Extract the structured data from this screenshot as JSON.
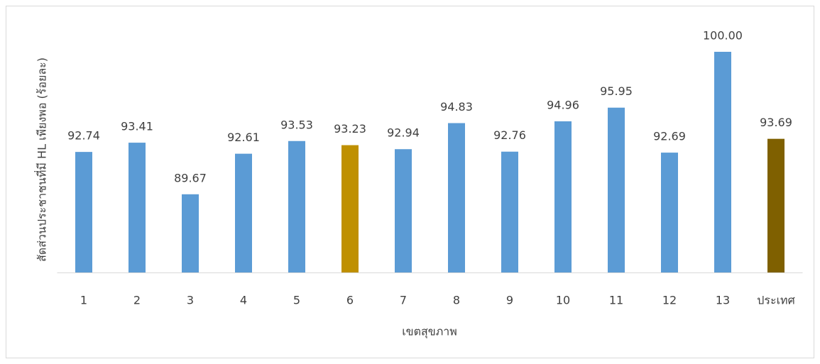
{
  "chart_data": {
    "type": "bar",
    "x_label": "เขตสุขภาพ",
    "y_label": "สัดส่วนประชาชนที่มี HL เพียงพอ (ร้อยละ)",
    "categories": [
      "1",
      "2",
      "3",
      "4",
      "5",
      "6",
      "7",
      "8",
      "9",
      "10",
      "11",
      "12",
      "13",
      "ประเทศ"
    ],
    "values": [
      92.74,
      93.41,
      89.67,
      92.61,
      93.53,
      93.23,
      92.94,
      94.83,
      92.76,
      94.96,
      95.95,
      92.69,
      100,
      93.69
    ],
    "value_labels": [
      "92.74",
      "93.41",
      "89.67",
      "92.61",
      "93.53",
      "93.23",
      "92.94",
      "94.83",
      "92.76",
      "94.96",
      "95.95",
      "92.69",
      "100.00",
      "93.69"
    ],
    "colors": [
      "#5b9bd5",
      "#5b9bd5",
      "#5b9bd5",
      "#5b9bd5",
      "#5b9bd5",
      "#bf9000",
      "#5b9bd5",
      "#5b9bd5",
      "#5b9bd5",
      "#5b9bd5",
      "#5b9bd5",
      "#5b9bd5",
      "#5b9bd5",
      "#7f6000"
    ],
    "ylim": [
      84,
      100
    ]
  }
}
